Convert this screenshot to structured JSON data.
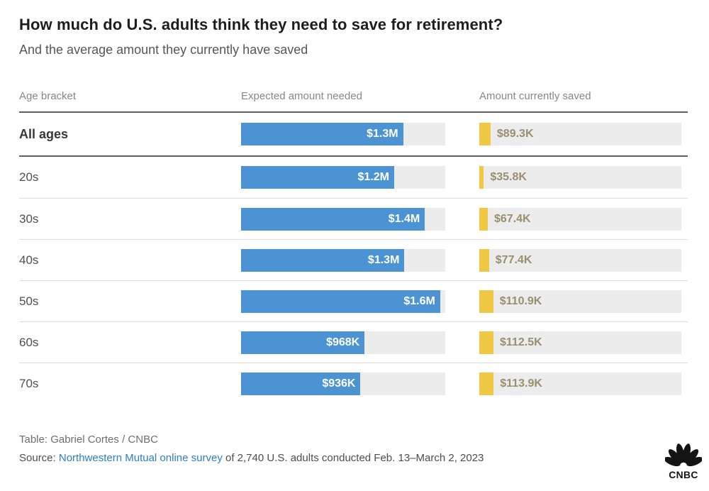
{
  "chart_data": {
    "type": "bar",
    "orientation": "horizontal",
    "title": "How much do U.S. adults think they need to save for retirement?",
    "subtitle": "And the average amount they currently have saved",
    "columns": {
      "age": "Age bracket",
      "expected": "Expected amount needed",
      "saved": "Amount currently saved"
    },
    "categories": [
      "All ages",
      "20s",
      "30s",
      "40s",
      "50s",
      "60s",
      "70s"
    ],
    "series": [
      {
        "name": "Expected amount needed",
        "color": "#4b93d2",
        "values": [
          1270000,
          1200000,
          1440000,
          1280000,
          1560000,
          968000,
          936000
        ]
      },
      {
        "name": "Amount currently saved",
        "color": "#f0c843",
        "values": [
          89300,
          35800,
          67400,
          77400,
          110900,
          112500,
          113900
        ]
      }
    ],
    "scale_max": 1600000,
    "legend": "none",
    "grid": "off",
    "rows": [
      {
        "age": "All ages",
        "expected_value": 1270000,
        "expected_label": "$1.3M",
        "saved_value": 89300,
        "saved_label": "$89.3K"
      },
      {
        "age": "20s",
        "expected_value": 1200000,
        "expected_label": "$1.2M",
        "saved_value": 35800,
        "saved_label": "$35.8K"
      },
      {
        "age": "30s",
        "expected_value": 1440000,
        "expected_label": "$1.4M",
        "saved_value": 67400,
        "saved_label": "$67.4K"
      },
      {
        "age": "40s",
        "expected_value": 1280000,
        "expected_label": "$1.3M",
        "saved_value": 77400,
        "saved_label": "$77.4K"
      },
      {
        "age": "50s",
        "expected_value": 1560000,
        "expected_label": "$1.6M",
        "saved_value": 110900,
        "saved_label": "$110.9K"
      },
      {
        "age": "60s",
        "expected_value": 968000,
        "expected_label": "$968K",
        "saved_value": 112500,
        "saved_label": "$112.5K"
      },
      {
        "age": "70s",
        "expected_value": 936000,
        "expected_label": "$936K",
        "saved_value": 113900,
        "saved_label": "$113.9K"
      }
    ]
  },
  "colors": {
    "expected_bar": "#4b93d2",
    "saved_bar": "#f0c843",
    "track": "#ececec",
    "link": "#2d7fc3",
    "rule_dark": "#5f5f5f",
    "rule_light": "#dcdcdc"
  },
  "footer": {
    "table_credit": "Table: Gabriel Cortes / CNBC",
    "source_prefix": "Source: ",
    "source_link": "Northwestern Mutual online survey",
    "source_suffix": " of 2,740 U.S. adults conducted Feb. 13–March 2, 2023",
    "logo_brand": "CNBC"
  }
}
